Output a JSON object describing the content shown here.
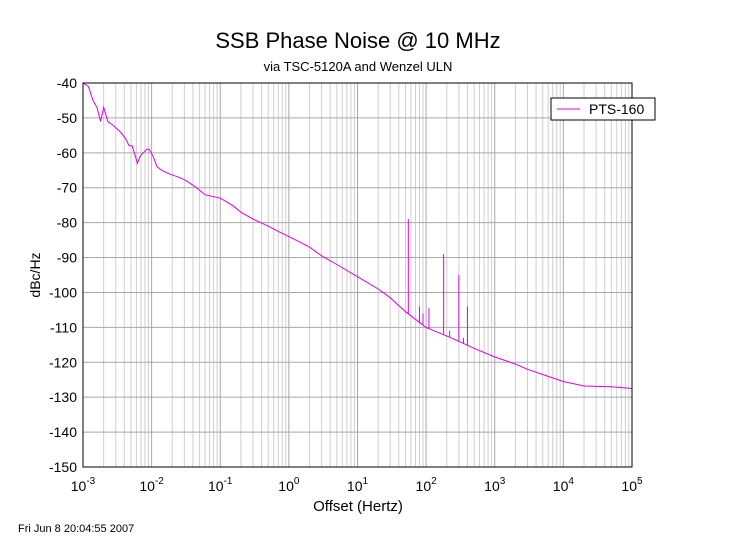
{
  "chart_data": {
    "type": "line",
    "title": "SSB Phase Noise @ 10 MHz",
    "subtitle": "via TSC-5120A and Wenzel ULN",
    "xlabel": "Offset (Hertz)",
    "ylabel": "dBc/Hz",
    "x_scale": "log",
    "xlim": [
      0.001,
      100000
    ],
    "ylim": [
      -150,
      -40
    ],
    "x_tick_labels": [
      {
        "base": "10",
        "exp": "-3"
      },
      {
        "base": "10",
        "exp": "-2"
      },
      {
        "base": "10",
        "exp": "-1"
      },
      {
        "base": "10",
        "exp": "0"
      },
      {
        "base": "10",
        "exp": "1"
      },
      {
        "base": "10",
        "exp": "2"
      },
      {
        "base": "10",
        "exp": "3"
      },
      {
        "base": "10",
        "exp": "4"
      },
      {
        "base": "10",
        "exp": "5"
      }
    ],
    "y_ticks": [
      -40,
      -50,
      -60,
      -70,
      -80,
      -90,
      -100,
      -110,
      -120,
      -130,
      -140,
      -150
    ],
    "grid": true,
    "legend_position": "top-right",
    "series": [
      {
        "name": "PTS-160",
        "color": "#e000e0",
        "points": [
          [
            0.001,
            -40
          ],
          [
            0.0012,
            -41
          ],
          [
            0.0014,
            -45
          ],
          [
            0.0016,
            -47
          ],
          [
            0.0018,
            -51
          ],
          [
            0.002,
            -47
          ],
          [
            0.0023,
            -51
          ],
          [
            0.0027,
            -52
          ],
          [
            0.0035,
            -54
          ],
          [
            0.0042,
            -56
          ],
          [
            0.0047,
            -58
          ],
          [
            0.0052,
            -58
          ],
          [
            0.0058,
            -61
          ],
          [
            0.0062,
            -63
          ],
          [
            0.0068,
            -61
          ],
          [
            0.0075,
            -60
          ],
          [
            0.0085,
            -59
          ],
          [
            0.0092,
            -59
          ],
          [
            0.0105,
            -61
          ],
          [
            0.012,
            -64
          ],
          [
            0.014,
            -65
          ],
          [
            0.018,
            -66
          ],
          [
            0.025,
            -67
          ],
          [
            0.032,
            -68
          ],
          [
            0.045,
            -70
          ],
          [
            0.06,
            -72
          ],
          [
            0.1,
            -73
          ],
          [
            0.15,
            -75
          ],
          [
            0.2,
            -77
          ],
          [
            0.3,
            -79
          ],
          [
            0.5,
            -81
          ],
          [
            0.7,
            -82.5
          ],
          [
            1,
            -84
          ],
          [
            2,
            -87
          ],
          [
            3,
            -89.5
          ],
          [
            5,
            -92
          ],
          [
            10,
            -95.5
          ],
          [
            20,
            -99
          ],
          [
            30,
            -101.5
          ],
          [
            50,
            -105.5
          ],
          [
            100,
            -110
          ],
          [
            200,
            -112.5
          ],
          [
            300,
            -114
          ],
          [
            500,
            -116
          ],
          [
            1000,
            -118.5
          ],
          [
            2000,
            -120.5
          ],
          [
            3000,
            -122
          ],
          [
            5000,
            -123.5
          ],
          [
            10000,
            -125.5
          ],
          [
            20000,
            -126.8
          ],
          [
            50000,
            -127
          ],
          [
            100000,
            -127.5
          ]
        ],
        "spurs": [
          [
            55,
            -79
          ],
          [
            80,
            -104
          ],
          [
            90,
            -106
          ],
          [
            110,
            -104.5
          ],
          [
            180,
            -89
          ],
          [
            220,
            -111
          ],
          [
            300,
            -95
          ],
          [
            350,
            -113
          ],
          [
            400,
            -104
          ]
        ]
      }
    ]
  },
  "footer": {
    "timestamp": "Fri Jun  8 20:04:55 2007"
  }
}
